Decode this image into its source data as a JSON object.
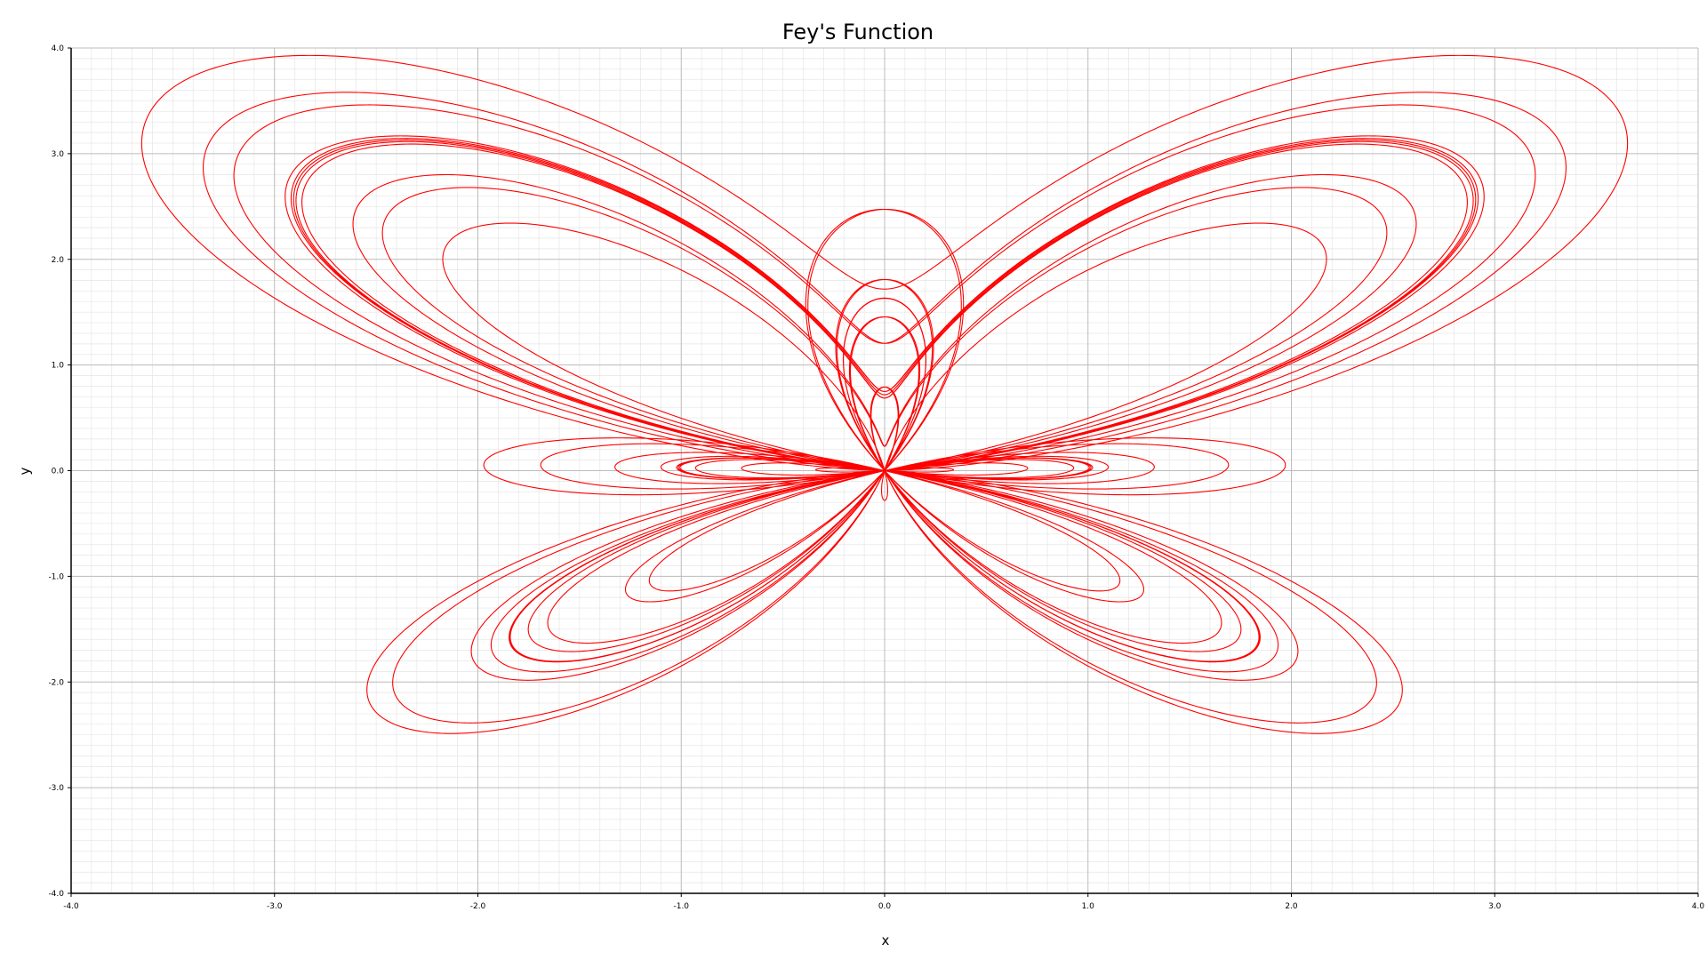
{
  "chart_data": {
    "type": "line",
    "title": "Fey's Function",
    "xlabel": "x",
    "ylabel": "y",
    "xlim": [
      -4.0,
      4.0
    ],
    "ylim": [
      -4.0,
      4.0
    ],
    "x_ticks": [
      "-4.0",
      "-3.0",
      "-2.0",
      "-1.0",
      "0.0",
      "1.0",
      "2.0",
      "3.0",
      "4.0"
    ],
    "y_ticks": [
      "-4.0",
      "-3.0",
      "-2.0",
      "-1.0",
      "0.0",
      "1.0",
      "2.0",
      "3.0",
      "4.0"
    ],
    "grid": true,
    "legend": "none",
    "series": [
      {
        "curve": "butterfly (Fey) parametric curve",
        "x_equation": "sin(t)*(e^cos(t) - 2cos(4t) - sin^5(t/12))",
        "y_equation": "cos(t)*(e^cos(t) - 2cos(4t) - sin^5(t/12))",
        "t_range": [
          0,
          75.398
        ],
        "color": "#ff0000"
      }
    ],
    "colors": {
      "curve": "#ff0000",
      "major_grid": "#bcbcbc",
      "minor_grid": "#e6e6e6",
      "axis": "#000000"
    }
  }
}
